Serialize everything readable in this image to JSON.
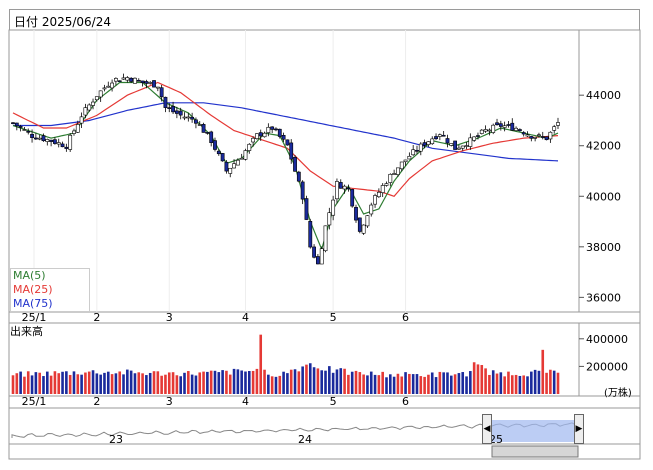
{
  "header": {
    "date_label": "日付 2025/06/24"
  },
  "legend": {
    "ma5": "MA(5)",
    "ma25": "MA(25)",
    "ma75": "MA(75)"
  },
  "colors": {
    "ma5": "#2e7d32",
    "ma25": "#e53935",
    "ma75": "#2233cc",
    "bull": "#ffffff",
    "bear": "#1a2a9c",
    "vol_up": "#e53935",
    "vol_down": "#1a2a9c"
  },
  "volume": {
    "title": "出来高",
    "unit": "(万株)"
  },
  "navigator": {
    "years": [
      "23",
      "24",
      "25"
    ]
  },
  "chart_data": {
    "type": "candlestick",
    "xlabel": "",
    "ylabel": "",
    "price_ylim": [
      35500,
      46500
    ],
    "price_yticks": [
      "44000",
      "42000",
      "40000",
      "38000",
      "36000"
    ],
    "volume_ylim": [
      0,
      500000
    ],
    "volume_yticks": [
      "400000",
      "200000"
    ],
    "x_ticks": [
      "25/1",
      "2",
      "3",
      "4",
      "5",
      "6"
    ],
    "anchors": {
      "close": [
        [
          0,
          42900
        ],
        [
          5,
          42400
        ],
        [
          10,
          42200
        ],
        [
          14,
          42000
        ],
        [
          18,
          43200
        ],
        [
          22,
          44000
        ],
        [
          26,
          44600
        ],
        [
          30,
          44700
        ],
        [
          34,
          44500
        ],
        [
          38,
          44400
        ],
        [
          40,
          43500
        ],
        [
          44,
          43200
        ],
        [
          48,
          43000
        ],
        [
          52,
          42200
        ],
        [
          56,
          41000
        ],
        [
          60,
          41600
        ],
        [
          64,
          42400
        ],
        [
          68,
          42700
        ],
        [
          72,
          42000
        ],
        [
          76,
          40000
        ],
        [
          78,
          38000
        ],
        [
          80,
          37300
        ],
        [
          82,
          38800
        ],
        [
          85,
          40500
        ],
        [
          88,
          40300
        ],
        [
          91,
          38600
        ],
        [
          94,
          39700
        ],
        [
          97,
          40400
        ],
        [
          100,
          41000
        ],
        [
          104,
          41600
        ],
        [
          108,
          42100
        ],
        [
          112,
          42500
        ],
        [
          116,
          41900
        ],
        [
          120,
          42200
        ],
        [
          124,
          42600
        ],
        [
          128,
          42800
        ],
        [
          132,
          42700
        ],
        [
          136,
          42400
        ],
        [
          140,
          42300
        ],
        [
          143,
          42900
        ]
      ],
      "ma5": [
        [
          0,
          42800
        ],
        [
          10,
          42300
        ],
        [
          16,
          42500
        ],
        [
          22,
          43800
        ],
        [
          28,
          44500
        ],
        [
          34,
          44500
        ],
        [
          40,
          43700
        ],
        [
          46,
          43300
        ],
        [
          52,
          42400
        ],
        [
          56,
          41300
        ],
        [
          60,
          41500
        ],
        [
          66,
          42500
        ],
        [
          70,
          42400
        ],
        [
          74,
          41200
        ],
        [
          78,
          39000
        ],
        [
          81,
          37900
        ],
        [
          84,
          39500
        ],
        [
          88,
          40400
        ],
        [
          92,
          39300
        ],
        [
          96,
          39500
        ],
        [
          100,
          40600
        ],
        [
          104,
          41400
        ],
        [
          110,
          42200
        ],
        [
          116,
          42000
        ],
        [
          122,
          42300
        ],
        [
          128,
          42700
        ],
        [
          134,
          42500
        ],
        [
          140,
          42300
        ],
        [
          143,
          42500
        ]
      ],
      "ma25": [
        [
          0,
          43300
        ],
        [
          8,
          42700
        ],
        [
          14,
          42700
        ],
        [
          22,
          43200
        ],
        [
          30,
          44000
        ],
        [
          38,
          44500
        ],
        [
          44,
          44100
        ],
        [
          52,
          43200
        ],
        [
          58,
          42600
        ],
        [
          64,
          42300
        ],
        [
          72,
          41900
        ],
        [
          78,
          41000
        ],
        [
          84,
          40400
        ],
        [
          90,
          40300
        ],
        [
          96,
          40200
        ],
        [
          100,
          40000
        ],
        [
          104,
          40700
        ],
        [
          110,
          41400
        ],
        [
          118,
          41800
        ],
        [
          126,
          42100
        ],
        [
          134,
          42300
        ],
        [
          143,
          42400
        ]
      ],
      "ma75": [
        [
          0,
          42800
        ],
        [
          10,
          42800
        ],
        [
          20,
          43000
        ],
        [
          30,
          43400
        ],
        [
          40,
          43700
        ],
        [
          50,
          43700
        ],
        [
          60,
          43500
        ],
        [
          70,
          43200
        ],
        [
          80,
          42900
        ],
        [
          90,
          42600
        ],
        [
          100,
          42300
        ],
        [
          110,
          41900
        ],
        [
          120,
          41700
        ],
        [
          130,
          41500
        ],
        [
          143,
          41400
        ]
      ]
    },
    "volume_anchors": [
      [
        0,
        140000
      ],
      [
        20,
        160000
      ],
      [
        40,
        150000
      ],
      [
        50,
        150000
      ],
      [
        64,
        170000
      ],
      [
        65,
        430000
      ],
      [
        66,
        160000
      ],
      [
        70,
        140000
      ],
      [
        76,
        200000
      ],
      [
        78,
        220000
      ],
      [
        80,
        200000
      ],
      [
        84,
        170000
      ],
      [
        90,
        150000
      ],
      [
        100,
        140000
      ],
      [
        110,
        140000
      ],
      [
        120,
        150000
      ],
      [
        121,
        230000
      ],
      [
        125,
        150000
      ],
      [
        135,
        150000
      ],
      [
        138,
        160000
      ],
      [
        139,
        320000
      ],
      [
        140,
        160000
      ],
      [
        143,
        150000
      ]
    ],
    "volume_spikes_up": [
      65,
      121,
      139
    ]
  }
}
